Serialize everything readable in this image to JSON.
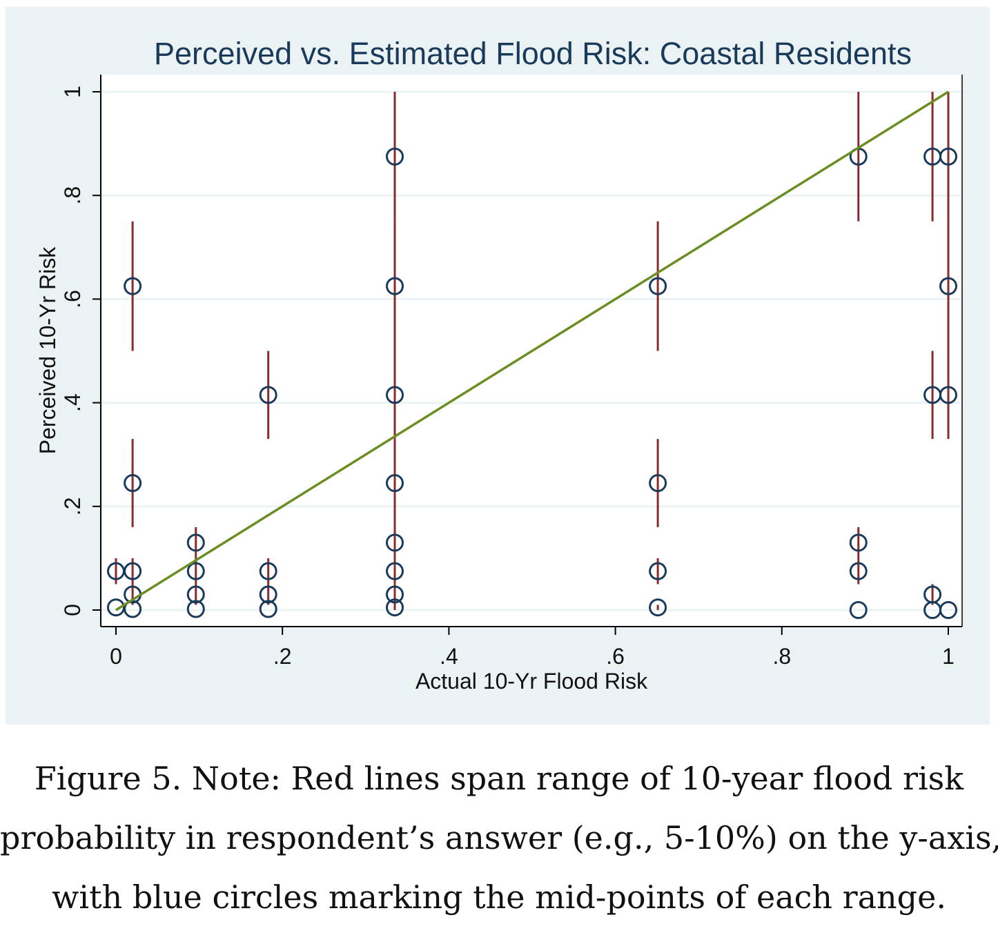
{
  "chart_data": {
    "type": "scatter",
    "title": "Perceived vs. Estimated Flood Risk: Coastal Residents",
    "xlabel": "Actual 10-Yr Flood Risk",
    "ylabel": "Perceived 10-Yr Risk",
    "xlim": [
      0,
      1
    ],
    "ylim": [
      0,
      1
    ],
    "x_ticks": [
      0,
      0.2,
      0.4,
      0.6,
      0.8,
      1
    ],
    "x_tick_labels": [
      "0",
      ".2",
      ".4",
      ".6",
      ".8",
      "1"
    ],
    "y_ticks": [
      0,
      0.2,
      0.4,
      0.6,
      0.8,
      1
    ],
    "y_tick_labels": [
      "0",
      ".2",
      ".4",
      ".6",
      ".8",
      "1"
    ],
    "grid": true,
    "background_color": "#eaf2f3",
    "plot_background_color": "#ffffff",
    "title_color": "#1a3a5c",
    "point_color": "#1a3a5c",
    "range_color": "#8b2a2a",
    "fit_line_color": "#6b8e23",
    "fit_line": {
      "x": [
        0,
        1
      ],
      "y": [
        0,
        1
      ]
    },
    "ranges": [
      {
        "x": 0.0,
        "low": 0.05,
        "high": 0.1
      },
      {
        "x": 0.02,
        "low": 0.5,
        "high": 0.75
      },
      {
        "x": 0.02,
        "low": 0.16,
        "high": 0.33
      },
      {
        "x": 0.02,
        "low": 0.05,
        "high": 0.1
      },
      {
        "x": 0.02,
        "low": 0.01,
        "high": 0.05
      },
      {
        "x": 0.096,
        "low": 0.1,
        "high": 0.16
      },
      {
        "x": 0.096,
        "low": 0.05,
        "high": 0.1
      },
      {
        "x": 0.096,
        "low": 0.01,
        "high": 0.05
      },
      {
        "x": 0.183,
        "low": 0.33,
        "high": 0.5
      },
      {
        "x": 0.183,
        "low": 0.05,
        "high": 0.1
      },
      {
        "x": 0.183,
        "low": 0.01,
        "high": 0.05
      },
      {
        "x": 0.335,
        "low": 0.75,
        "high": 1.0
      },
      {
        "x": 0.335,
        "low": 0.5,
        "high": 0.75
      },
      {
        "x": 0.335,
        "low": 0.33,
        "high": 0.5
      },
      {
        "x": 0.335,
        "low": 0.16,
        "high": 0.33
      },
      {
        "x": 0.335,
        "low": 0.1,
        "high": 0.16
      },
      {
        "x": 0.335,
        "low": 0.05,
        "high": 0.1
      },
      {
        "x": 0.335,
        "low": 0.01,
        "high": 0.05
      },
      {
        "x": 0.335,
        "low": 0.0,
        "high": 0.01
      },
      {
        "x": 0.651,
        "low": 0.5,
        "high": 0.75
      },
      {
        "x": 0.651,
        "low": 0.16,
        "high": 0.33
      },
      {
        "x": 0.651,
        "low": 0.05,
        "high": 0.1
      },
      {
        "x": 0.651,
        "low": 0.0,
        "high": 0.01
      },
      {
        "x": 0.892,
        "low": 0.75,
        "high": 1.0
      },
      {
        "x": 0.892,
        "low": 0.1,
        "high": 0.16
      },
      {
        "x": 0.892,
        "low": 0.05,
        "high": 0.1
      },
      {
        "x": 0.981,
        "low": 0.75,
        "high": 1.0
      },
      {
        "x": 0.981,
        "low": 0.33,
        "high": 0.5
      },
      {
        "x": 0.981,
        "low": 0.01,
        "high": 0.05
      },
      {
        "x": 1.0,
        "low": 0.75,
        "high": 1.0
      },
      {
        "x": 1.0,
        "low": 0.5,
        "high": 0.75
      },
      {
        "x": 1.0,
        "low": 0.33,
        "high": 0.5
      }
    ],
    "points": [
      {
        "x": 0.0,
        "y": 0.075
      },
      {
        "x": 0.0,
        "y": 0.005
      },
      {
        "x": 0.02,
        "y": 0.625
      },
      {
        "x": 0.02,
        "y": 0.245
      },
      {
        "x": 0.02,
        "y": 0.075
      },
      {
        "x": 0.02,
        "y": 0.03
      },
      {
        "x": 0.02,
        "y": 0.002
      },
      {
        "x": 0.096,
        "y": 0.13
      },
      {
        "x": 0.096,
        "y": 0.075
      },
      {
        "x": 0.096,
        "y": 0.03
      },
      {
        "x": 0.096,
        "y": 0.002
      },
      {
        "x": 0.183,
        "y": 0.415
      },
      {
        "x": 0.183,
        "y": 0.075
      },
      {
        "x": 0.183,
        "y": 0.03
      },
      {
        "x": 0.183,
        "y": 0.002
      },
      {
        "x": 0.335,
        "y": 0.875
      },
      {
        "x": 0.335,
        "y": 0.625
      },
      {
        "x": 0.335,
        "y": 0.415
      },
      {
        "x": 0.335,
        "y": 0.245
      },
      {
        "x": 0.335,
        "y": 0.13
      },
      {
        "x": 0.335,
        "y": 0.075
      },
      {
        "x": 0.335,
        "y": 0.03
      },
      {
        "x": 0.335,
        "y": 0.005
      },
      {
        "x": 0.651,
        "y": 0.625
      },
      {
        "x": 0.651,
        "y": 0.245
      },
      {
        "x": 0.651,
        "y": 0.075
      },
      {
        "x": 0.651,
        "y": 0.005
      },
      {
        "x": 0.892,
        "y": 0.875
      },
      {
        "x": 0.892,
        "y": 0.13
      },
      {
        "x": 0.892,
        "y": 0.075
      },
      {
        "x": 0.892,
        "y": 0.0
      },
      {
        "x": 0.981,
        "y": 0.875
      },
      {
        "x": 0.981,
        "y": 0.415
      },
      {
        "x": 0.981,
        "y": 0.03
      },
      {
        "x": 0.981,
        "y": 0.0
      },
      {
        "x": 1.0,
        "y": 0.875
      },
      {
        "x": 1.0,
        "y": 0.625
      },
      {
        "x": 1.0,
        "y": 0.415
      },
      {
        "x": 1.0,
        "y": 0.0
      }
    ]
  },
  "caption": {
    "line1": "Figure 5. Note: Red lines span range of 10-year flood risk",
    "line2": "probability in respondent’s answer (e.g., 5-10%) on the y-axis,",
    "line3": "with blue circles marking the mid-points of each range."
  }
}
